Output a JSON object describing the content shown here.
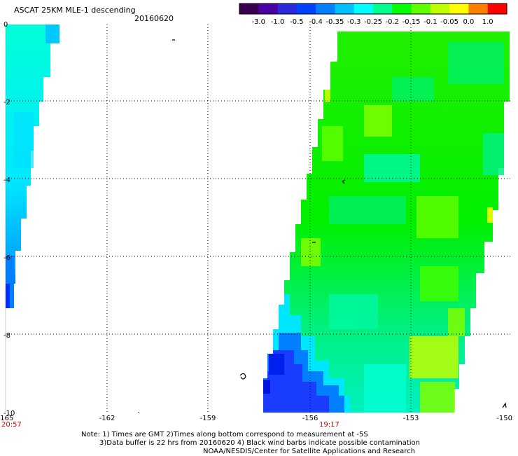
{
  "header": {
    "title": "ASCAT 25KM MLE-1 descending",
    "date": "20160620"
  },
  "colorbar": {
    "tick_labels": [
      "-3.0",
      "-1.0",
      "-0.5",
      "-0.4",
      "-0.35",
      "-0.3",
      "-0.25",
      "-0.2",
      "-0.15",
      "-0.1",
      "-0.05",
      "0.0",
      "1.0"
    ],
    "colors": [
      "#3a0050",
      "#4b00a0",
      "#2a2ad8",
      "#0040ff",
      "#0080ff",
      "#00c0ff",
      "#00ffff",
      "#00ff90",
      "#00ff00",
      "#60ff00",
      "#c0ff00",
      "#ffff00",
      "#ff8000",
      "#ff0000"
    ]
  },
  "map": {
    "lon_labels": [
      "-165",
      "-162",
      "-159",
      "-156",
      "-153",
      "-150"
    ],
    "lat_labels": [
      "0",
      "-2",
      "-4",
      "-6",
      "-8",
      "-10"
    ],
    "times": {
      "left": "20:57",
      "right": "19:17"
    },
    "colors": {
      "blue": "#1a3cff",
      "cyan": "#00e6ff",
      "aqua": "#00ffd0",
      "green": "#00f000",
      "lime": "#80ff00",
      "yellow": "#d8ff00"
    }
  },
  "notes": {
    "line1": "Note: 1) Times are GMT 2)Times along bottom correspond to measurement at -5S",
    "line2": "3)Data buffer is 22 hrs from 20160620 4) Black wind barbs indicate possible contamination",
    "line3": "NOAA/NESDIS/Center for Satellite Applications and Research"
  }
}
